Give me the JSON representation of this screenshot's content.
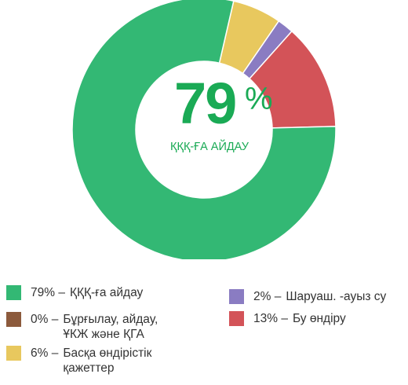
{
  "chart_data": {
    "type": "pie",
    "center_value": "79",
    "center_value_suffix": "%",
    "center_label": "ҚҚҚ-ҒА АЙДАУ",
    "slices": [
      {
        "label": "ҚҚҚ-ға айдау",
        "percent_label": "79% –",
        "value": 79,
        "color": "#33b874"
      },
      {
        "label": "Бұрғылау, айдау, ҰКЖ және ҚГА",
        "percent_label": "0% –",
        "value": 0,
        "color": "#8c5a3c"
      },
      {
        "label": "Басқа өндірістік қажеттер",
        "percent_label": "6% –",
        "value": 6,
        "color": "#e8c85e"
      },
      {
        "label": "Шаруаш. -ауыз су",
        "percent_label": "2% –",
        "value": 2,
        "color": "#8a7cc2"
      },
      {
        "label": "Бу өндіру",
        "percent_label": "13% –",
        "value": 13,
        "color": "#d35358"
      }
    ],
    "slice_order_clockwise_from_top": [
      2,
      3,
      4,
      0
    ],
    "accent_color": "#1aaa55"
  }
}
